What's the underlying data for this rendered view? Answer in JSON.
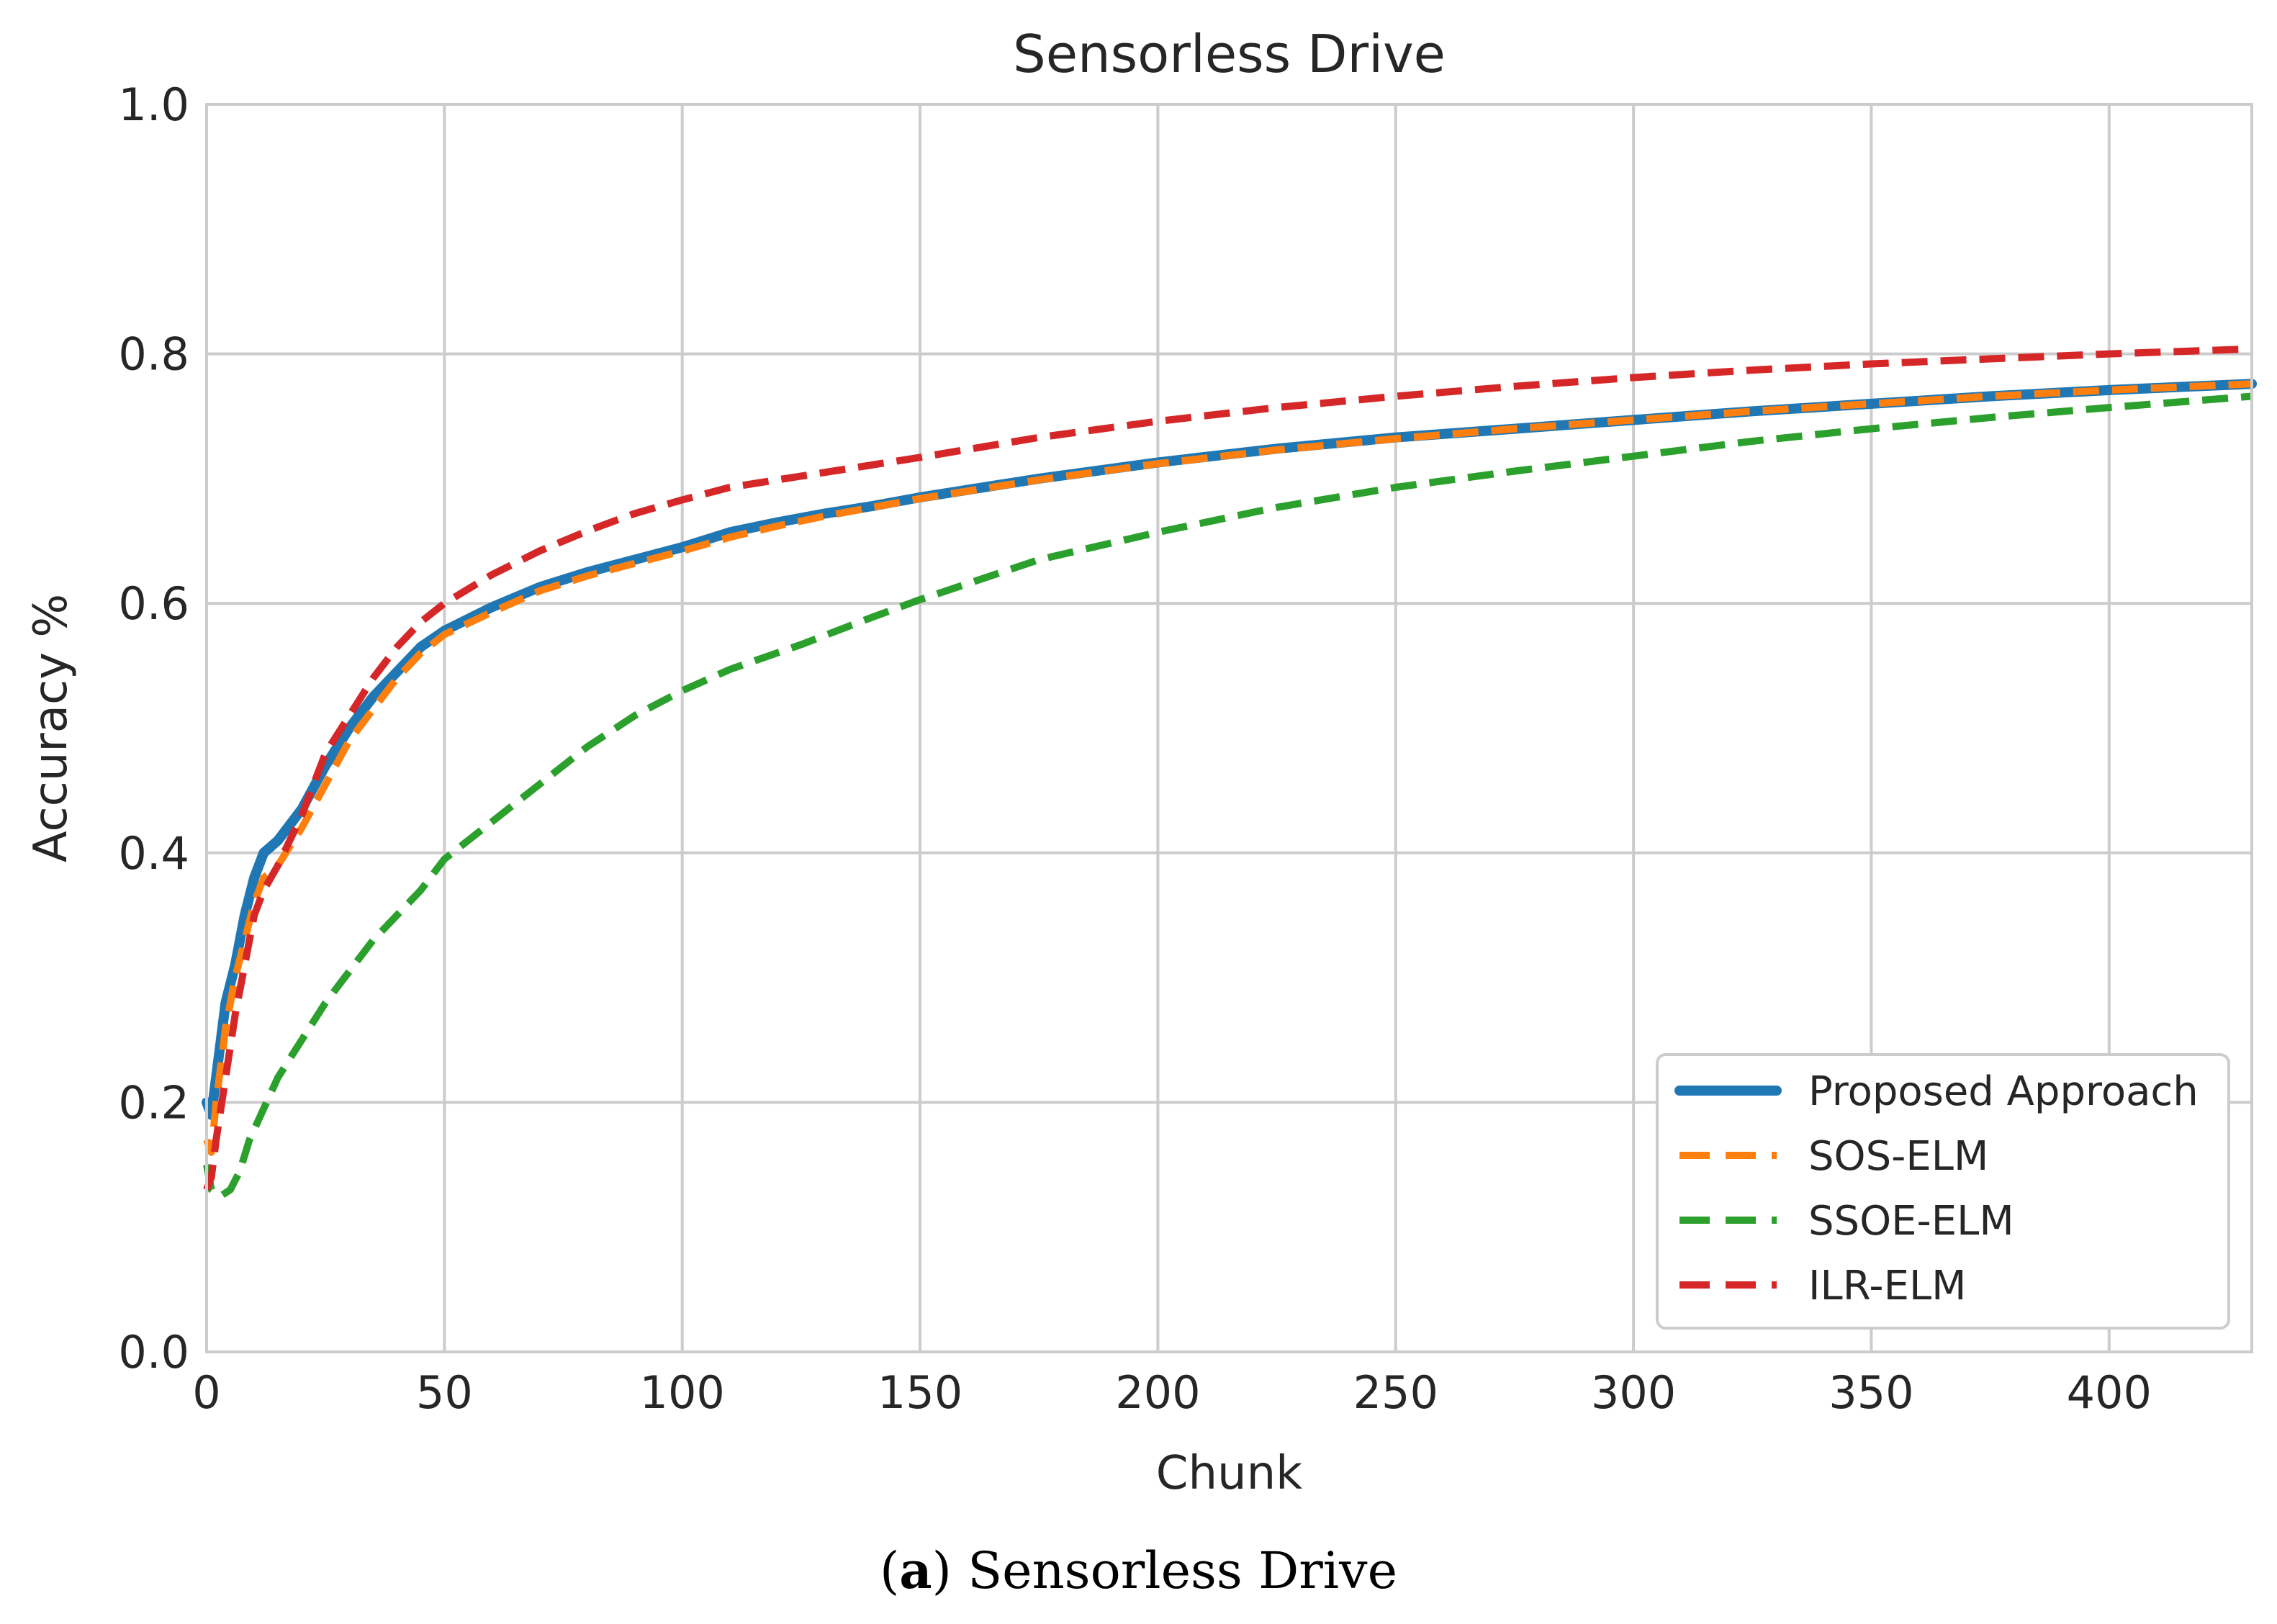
{
  "caption": {
    "label": "a",
    "text": "Sensorless Drive"
  },
  "chart_data": {
    "type": "line",
    "title": "Sensorless Drive",
    "xlabel": "Chunk",
    "ylabel": "Accuracy %",
    "xlim": [
      0,
      430
    ],
    "ylim": [
      0.0,
      1.0
    ],
    "xticks": [
      0,
      50,
      100,
      150,
      200,
      250,
      300,
      350,
      400
    ],
    "yticks": [
      "0.0",
      "0.2",
      "0.4",
      "0.6",
      "0.8",
      "1.0"
    ],
    "grid": true,
    "legend_position": "lower-right",
    "series": [
      {
        "name": "Proposed Approach",
        "color": "#1f77b4",
        "style": "solid",
        "x": [
          0,
          1,
          2,
          4,
          6,
          8,
          10,
          12,
          15,
          20,
          25,
          30,
          35,
          40,
          45,
          50,
          60,
          70,
          80,
          90,
          100,
          110,
          120,
          130,
          140,
          150,
          175,
          200,
          225,
          250,
          275,
          300,
          325,
          350,
          375,
          400,
          430
        ],
        "y": [
          0.2,
          0.19,
          0.22,
          0.28,
          0.31,
          0.35,
          0.38,
          0.4,
          0.41,
          0.435,
          0.47,
          0.5,
          0.525,
          0.545,
          0.565,
          0.578,
          0.597,
          0.613,
          0.625,
          0.635,
          0.645,
          0.657,
          0.665,
          0.672,
          0.678,
          0.685,
          0.7,
          0.713,
          0.724,
          0.733,
          0.74,
          0.747,
          0.754,
          0.76,
          0.766,
          0.771,
          0.776
        ]
      },
      {
        "name": "SOS-ELM",
        "color": "#ff7f0e",
        "style": "dashed",
        "x": [
          0,
          1,
          2,
          4,
          6,
          8,
          10,
          12,
          15,
          20,
          25,
          30,
          35,
          40,
          45,
          50,
          60,
          70,
          80,
          90,
          100,
          110,
          120,
          130,
          140,
          150,
          175,
          200,
          225,
          250,
          275,
          300,
          325,
          350,
          375,
          400,
          430
        ],
        "y": [
          0.17,
          0.16,
          0.2,
          0.26,
          0.3,
          0.33,
          0.36,
          0.38,
          0.39,
          0.42,
          0.455,
          0.49,
          0.515,
          0.54,
          0.56,
          0.575,
          0.593,
          0.61,
          0.622,
          0.632,
          0.642,
          0.653,
          0.662,
          0.67,
          0.677,
          0.684,
          0.699,
          0.712,
          0.723,
          0.732,
          0.74,
          0.747,
          0.754,
          0.76,
          0.766,
          0.771,
          0.776
        ]
      },
      {
        "name": "SSOE-ELM",
        "color": "#2ca02c",
        "style": "dashed",
        "x": [
          0,
          1,
          3,
          5,
          7,
          9,
          12,
          15,
          20,
          25,
          30,
          35,
          40,
          45,
          50,
          60,
          70,
          80,
          90,
          100,
          110,
          125,
          140,
          150,
          175,
          200,
          225,
          250,
          275,
          300,
          325,
          350,
          375,
          400,
          430
        ],
        "y": [
          0.15,
          0.13,
          0.125,
          0.13,
          0.145,
          0.17,
          0.195,
          0.22,
          0.25,
          0.28,
          0.305,
          0.33,
          0.35,
          0.37,
          0.395,
          0.425,
          0.455,
          0.485,
          0.51,
          0.53,
          0.547,
          0.567,
          0.589,
          0.603,
          0.635,
          0.657,
          0.677,
          0.693,
          0.706,
          0.718,
          0.73,
          0.74,
          0.749,
          0.757,
          0.766
        ]
      },
      {
        "name": "ILR-ELM",
        "color": "#d62728",
        "style": "dashed",
        "x": [
          0,
          1,
          2,
          4,
          6,
          8,
          10,
          12,
          15,
          20,
          25,
          30,
          35,
          40,
          45,
          50,
          60,
          70,
          80,
          90,
          100,
          110,
          120,
          130,
          140,
          150,
          175,
          200,
          225,
          250,
          275,
          300,
          325,
          350,
          375,
          400,
          430
        ],
        "y": [
          0.13,
          0.14,
          0.17,
          0.22,
          0.27,
          0.31,
          0.35,
          0.37,
          0.39,
          0.43,
          0.48,
          0.51,
          0.54,
          0.565,
          0.585,
          0.6,
          0.623,
          0.642,
          0.658,
          0.672,
          0.683,
          0.693,
          0.699,
          0.705,
          0.711,
          0.717,
          0.733,
          0.746,
          0.757,
          0.766,
          0.774,
          0.781,
          0.787,
          0.792,
          0.796,
          0.8,
          0.804
        ]
      }
    ]
  }
}
